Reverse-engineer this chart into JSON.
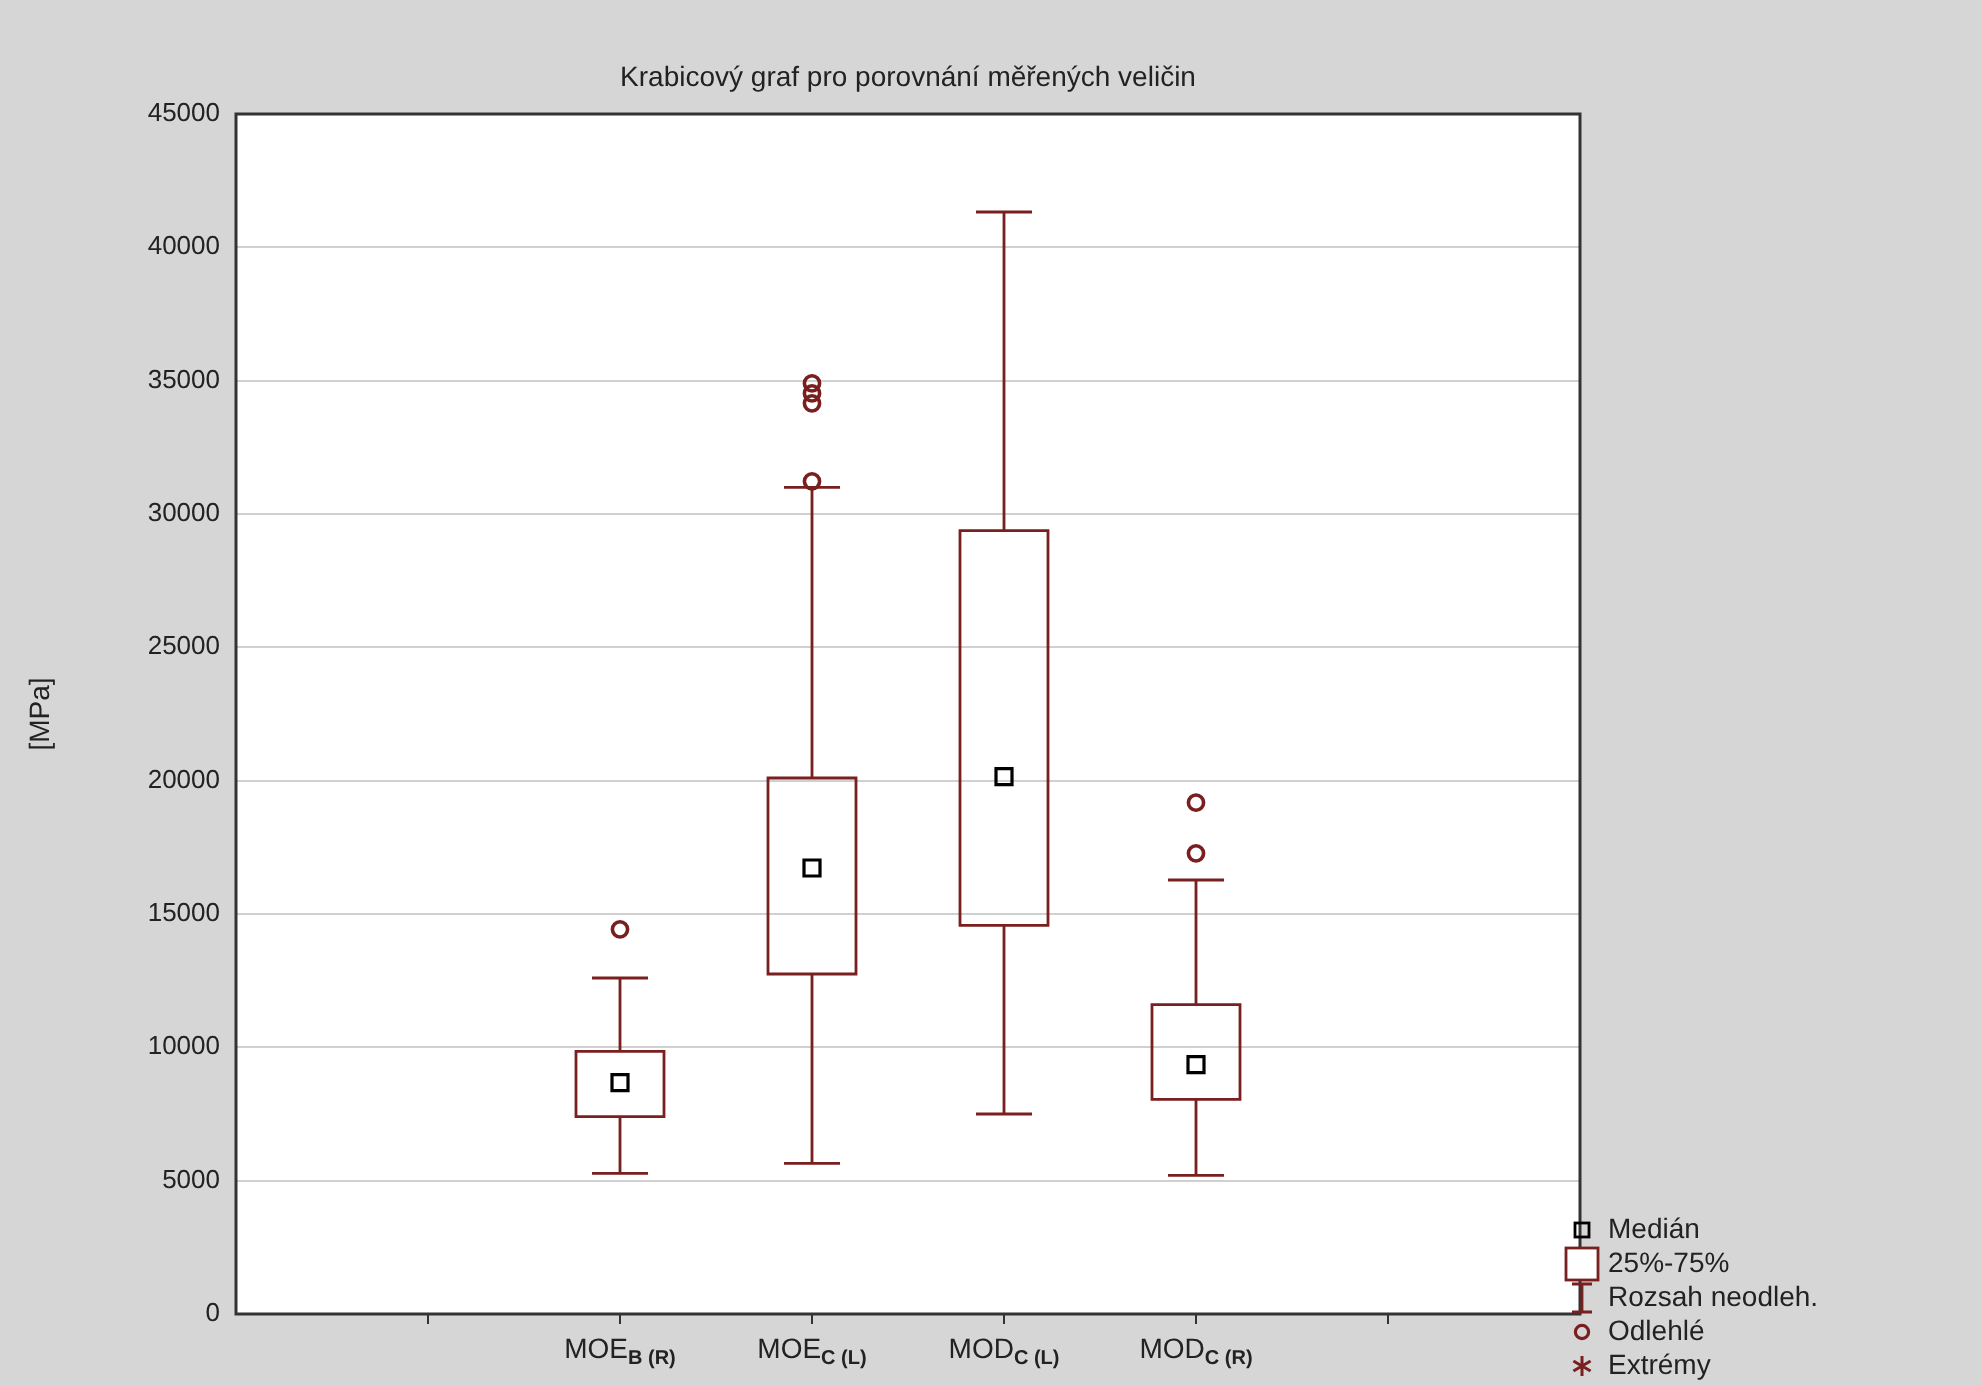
{
  "chart_data": {
    "type": "box",
    "title": "Krabicový graf pro porovnání měřených veličin",
    "ylabel": "[MPa]",
    "categories": [
      null,
      "MOE$_{B (R)}$",
      "MOE$_{C (L)}$",
      "MOD$_{C (L)}$",
      "MOD$_{C (R)}$",
      null
    ],
    "series": [
      {
        "color": "#7a1f1f",
        "boxes": [
          null,
          {
            "low": 5275,
            "q1": 7400,
            "median": 8675,
            "q3": 9850,
            "high": 12600,
            "outliers": [
              14425
            ]
          },
          {
            "low": 5650,
            "q1": 12750,
            "median": 16725,
            "q3": 20100,
            "high": 31000,
            "outliers": [
              31225,
              34150,
              34525,
              34900
            ]
          },
          {
            "low": 7500,
            "q1": 14575,
            "median": 20150,
            "q3": 29375,
            "high": 41325
          },
          {
            "low": 5200,
            "q1": 8050,
            "median": 9350,
            "q3": 11600,
            "high": 16275,
            "outliers": [
              17275,
              19175
            ]
          },
          null
        ]
      }
    ],
    "ylim": [
      0,
      45000
    ],
    "yticks": [
      0,
      5000,
      10000,
      15000,
      20000,
      25000,
      30000,
      35000,
      40000,
      45000
    ],
    "grid": "y",
    "annotations": [
      "Medián",
      "25%-75%",
      "Rozsah neodleh.",
      "Odlehlé",
      "Extrémy"
    ]
  }
}
